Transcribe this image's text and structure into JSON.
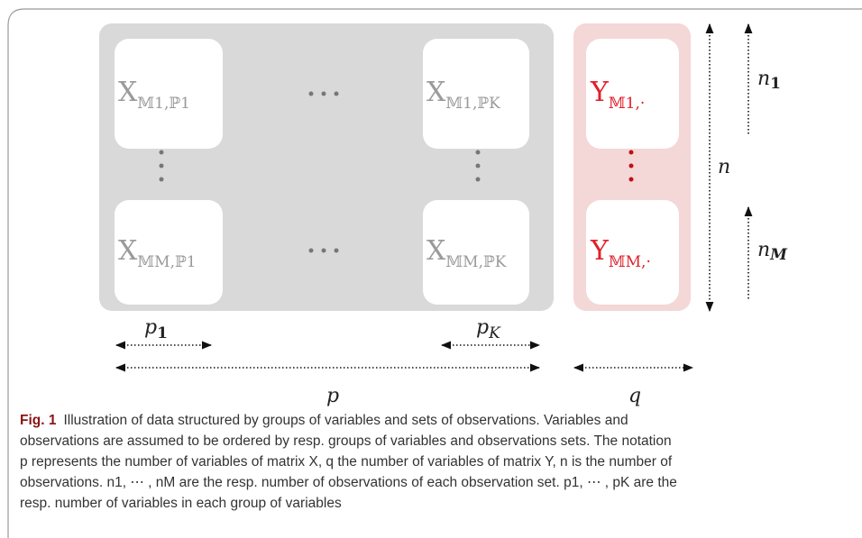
{
  "figure": {
    "x_cells": [
      {
        "symbol": "X",
        "subscript": "𝕄1,ℙ1"
      },
      {
        "symbol": "X",
        "subscript": "𝕄1,ℙK"
      },
      {
        "symbol": "X",
        "subscript": "𝕄M,ℙ1"
      },
      {
        "symbol": "X",
        "subscript": "𝕄M,ℙK"
      }
    ],
    "y_cells": [
      {
        "symbol": "Y",
        "subscript": "𝕄1,·"
      },
      {
        "symbol": "Y",
        "subscript": "𝕄M,·"
      }
    ],
    "dimensions": {
      "p1": {
        "symbol": "p",
        "subscript": "1"
      },
      "pK": {
        "symbol": "p",
        "subscript": "K"
      },
      "p": "p",
      "q": "q",
      "n": "n",
      "n1": {
        "symbol": "n",
        "subscript": "1"
      },
      "nM": {
        "symbol": "n",
        "subscript": "M"
      }
    }
  },
  "caption": {
    "label": "Fig. 1",
    "lines": [
      "Illustration of data structured by groups of variables and sets of observations. Variables and",
      "observations are assumed to be ordered by resp. groups of variables and observations sets. The notation",
      "p represents the number of variables of matrix X, q the number of variables of matrix Y, n is the number of",
      "observations. n1, ⋯ , nM are the resp. number of observations of each observation set. p1, ⋯ , pK are the",
      "resp. number of variables in each group of variables"
    ]
  }
}
